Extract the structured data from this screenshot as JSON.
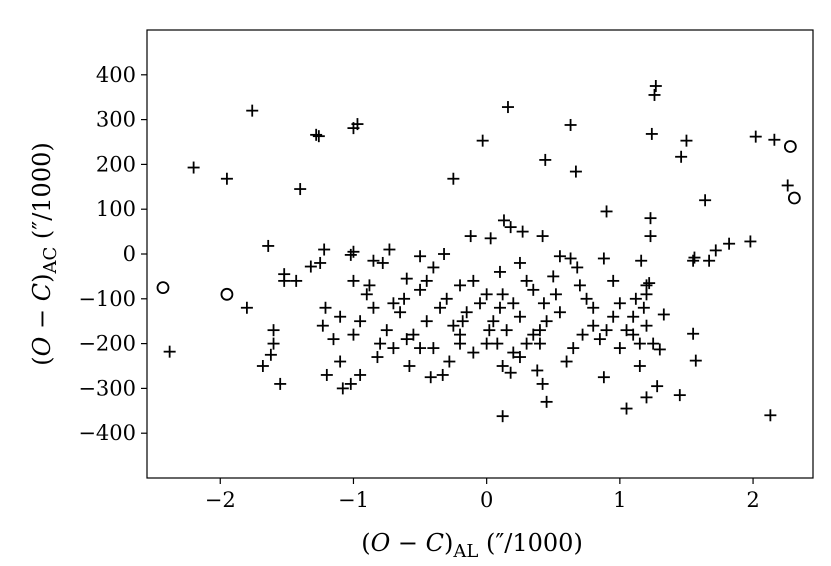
{
  "chart_data": {
    "type": "scatter",
    "title": "",
    "xlabel": "(O − C)AL (″/1000)",
    "ylabel": "(O − C)AC (″/1000)",
    "xlim": [
      -2.55,
      2.45
    ],
    "ylim": [
      -500,
      500
    ],
    "x_ticks": [
      -2,
      -1,
      0,
      1,
      2
    ],
    "y_ticks": [
      -400,
      -300,
      -200,
      -100,
      0,
      100,
      200,
      300,
      400
    ],
    "x_tick_labels": [
      "−2",
      "−1",
      "0",
      "1",
      "2"
    ],
    "y_tick_labels": [
      "−400",
      "−300",
      "−200",
      "−100",
      "0",
      "100",
      "200",
      "300",
      "400"
    ],
    "grid": false,
    "legend": "none",
    "series": [
      {
        "marker": "plus",
        "color": "#000000",
        "points": [
          [
            -1.76,
            320
          ],
          [
            -2.2,
            193
          ],
          [
            -1.95,
            168
          ],
          [
            -1.28,
            266
          ],
          [
            -1.26,
            263
          ],
          [
            -1.0,
            281
          ],
          [
            -0.97,
            290
          ],
          [
            -1.4,
            145
          ],
          [
            -0.25,
            168
          ],
          [
            -0.03,
            253
          ],
          [
            0.16,
            328
          ],
          [
            0.44,
            210
          ],
          [
            0.63,
            288
          ],
          [
            0.67,
            184
          ],
          [
            1.27,
            375
          ],
          [
            1.26,
            355
          ],
          [
            1.24,
            268
          ],
          [
            1.5,
            253
          ],
          [
            1.46,
            217
          ],
          [
            2.02,
            262
          ],
          [
            2.16,
            255
          ],
          [
            2.26,
            153
          ],
          [
            1.64,
            120
          ],
          [
            1.23,
            80
          ],
          [
            0.9,
            95
          ],
          [
            1.23,
            40
          ],
          [
            1.82,
            23
          ],
          [
            1.98,
            28
          ],
          [
            1.72,
            8
          ],
          [
            1.67,
            -15
          ],
          [
            1.55,
            -15
          ],
          [
            1.56,
            -8
          ],
          [
            1.2,
            -70
          ],
          [
            1.18,
            -120
          ],
          [
            1.0,
            -110
          ],
          [
            -1.64,
            18
          ],
          [
            -1.22,
            10
          ],
          [
            -1.0,
            5
          ],
          [
            -1.02,
            -2
          ],
          [
            -0.73,
            10
          ],
          [
            -0.5,
            -5
          ],
          [
            -0.32,
            0
          ],
          [
            -0.12,
            40
          ],
          [
            0.03,
            35
          ],
          [
            0.13,
            75
          ],
          [
            0.18,
            60
          ],
          [
            0.27,
            50
          ],
          [
            0.42,
            40
          ],
          [
            0.88,
            -10
          ],
          [
            1.16,
            -15
          ],
          [
            -1.52,
            -45
          ],
          [
            -1.52,
            -60
          ],
          [
            -1.32,
            -28
          ],
          [
            -1.25,
            -20
          ],
          [
            -1.43,
            -60
          ],
          [
            -1.21,
            -120
          ],
          [
            -1.23,
            -160
          ],
          [
            -1.1,
            -140
          ],
          [
            -1.0,
            -60
          ],
          [
            -0.88,
            -70
          ],
          [
            -0.78,
            -20
          ],
          [
            -0.6,
            -55
          ],
          [
            -0.4,
            -30
          ],
          [
            -0.2,
            -70
          ],
          [
            0.0,
            -90
          ],
          [
            0.12,
            -90
          ],
          [
            0.2,
            -110
          ],
          [
            0.35,
            -80
          ],
          [
            0.43,
            -110
          ],
          [
            0.52,
            -90
          ],
          [
            0.63,
            -10
          ],
          [
            0.68,
            -30
          ],
          [
            0.75,
            -100
          ],
          [
            0.8,
            -160
          ],
          [
            0.9,
            -170
          ],
          [
            0.95,
            -60
          ],
          [
            1.05,
            -170
          ],
          [
            1.1,
            -140
          ],
          [
            1.2,
            -160
          ],
          [
            1.25,
            -200
          ],
          [
            1.33,
            -135
          ],
          [
            -1.68,
            -250
          ],
          [
            -1.6,
            -170
          ],
          [
            -1.62,
            -225
          ],
          [
            -1.55,
            -290
          ],
          [
            -1.6,
            -200
          ],
          [
            -2.38,
            -218
          ],
          [
            -1.8,
            -120
          ],
          [
            -1.2,
            -270
          ],
          [
            -1.1,
            -240
          ],
          [
            -1.08,
            -300
          ],
          [
            -1.02,
            -290
          ],
          [
            -0.95,
            -270
          ],
          [
            -0.82,
            -230
          ],
          [
            -0.7,
            -210
          ],
          [
            -0.58,
            -250
          ],
          [
            -0.5,
            -210
          ],
          [
            -0.42,
            -275
          ],
          [
            -0.33,
            -270
          ],
          [
            -0.28,
            -240
          ],
          [
            -0.2,
            -200
          ],
          [
            -0.1,
            -220
          ],
          [
            0.02,
            -170
          ],
          [
            0.08,
            -200
          ],
          [
            0.12,
            -250
          ],
          [
            0.18,
            -265
          ],
          [
            0.25,
            -230
          ],
          [
            0.3,
            -200
          ],
          [
            0.38,
            -260
          ],
          [
            0.42,
            -290
          ],
          [
            0.45,
            -330
          ],
          [
            0.12,
            -362
          ],
          [
            0.88,
            -275
          ],
          [
            1.05,
            -345
          ],
          [
            1.15,
            -250
          ],
          [
            1.2,
            -320
          ],
          [
            1.28,
            -295
          ],
          [
            1.45,
            -315
          ],
          [
            1.57,
            -238
          ],
          [
            1.55,
            -178
          ],
          [
            1.3,
            -213
          ],
          [
            2.13,
            -360
          ],
          [
            -0.95,
            -150
          ],
          [
            -0.85,
            -120
          ],
          [
            -0.75,
            -170
          ],
          [
            -0.65,
            -130
          ],
          [
            -0.55,
            -180
          ],
          [
            -0.45,
            -150
          ],
          [
            -0.35,
            -120
          ],
          [
            -0.25,
            -160
          ],
          [
            -0.15,
            -130
          ],
          [
            -0.05,
            -110
          ],
          [
            0.05,
            -150
          ],
          [
            0.15,
            -170
          ],
          [
            0.25,
            -140
          ],
          [
            0.35,
            -180
          ],
          [
            0.45,
            -150
          ],
          [
            0.55,
            -130
          ],
          [
            0.65,
            -210
          ],
          [
            0.72,
            -180
          ],
          [
            -0.9,
            -90
          ],
          [
            -0.7,
            -110
          ],
          [
            -0.5,
            -80
          ],
          [
            -0.3,
            -100
          ],
          [
            -0.1,
            -60
          ],
          [
            0.1,
            -40
          ],
          [
            0.3,
            -60
          ],
          [
            0.5,
            -50
          ],
          [
            0.7,
            -70
          ],
          [
            -1.15,
            -190
          ],
          [
            -1.0,
            -180
          ],
          [
            -0.8,
            -200
          ],
          [
            -0.6,
            -190
          ],
          [
            -0.4,
            -210
          ],
          [
            -0.2,
            -180
          ],
          [
            0.0,
            -200
          ],
          [
            0.2,
            -220
          ],
          [
            0.4,
            -200
          ],
          [
            0.6,
            -240
          ],
          [
            0.85,
            -190
          ],
          [
            1.0,
            -210
          ],
          [
            1.15,
            -200
          ],
          [
            1.2,
            -90
          ],
          [
            1.1,
            -180
          ],
          [
            -0.85,
            -15
          ],
          [
            -0.45,
            -60
          ],
          [
            0.25,
            -20
          ],
          [
            0.55,
            -5
          ],
          [
            -0.62,
            -100
          ],
          [
            -0.18,
            -150
          ],
          [
            0.1,
            -120
          ],
          [
            0.4,
            -170
          ],
          [
            0.8,
            -120
          ],
          [
            0.95,
            -140
          ],
          [
            1.12,
            -100
          ],
          [
            1.22,
            -65
          ]
        ]
      },
      {
        "marker": "circle",
        "color": "#000000",
        "points": [
          [
            -2.43,
            -75
          ],
          [
            -1.95,
            -90
          ],
          [
            2.28,
            240
          ],
          [
            2.31,
            125
          ]
        ]
      }
    ]
  }
}
